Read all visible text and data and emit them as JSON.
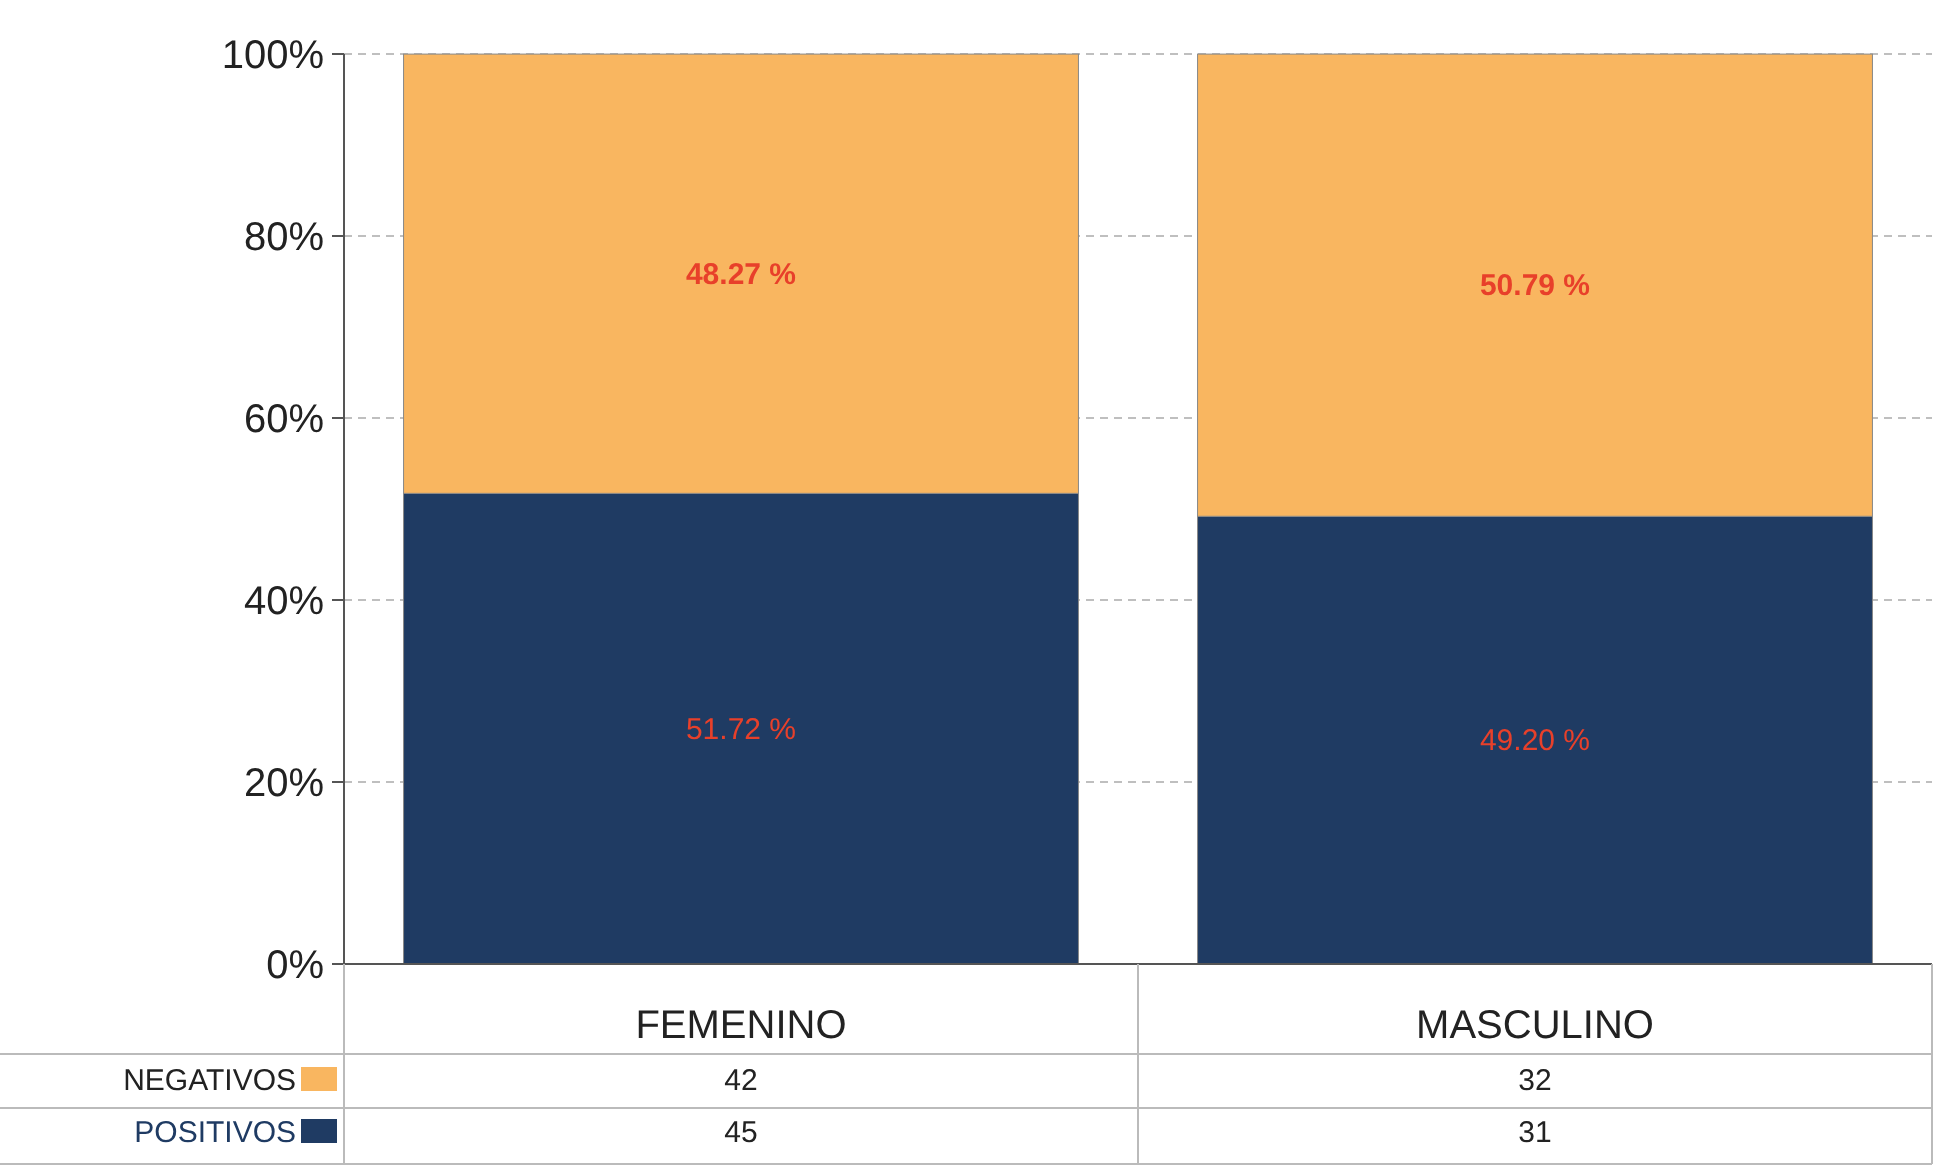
{
  "chart_data": {
    "type": "bar",
    "stacked": true,
    "categories": [
      "FEMENINO",
      "MASCULINO"
    ],
    "series": [
      {
        "name": "POSITIVOS",
        "color": "#1f3b63",
        "values": [
          51.72,
          49.2
        ],
        "value_labels": [
          "51.72 %",
          "49.20 %"
        ]
      },
      {
        "name": "NEGATIVOS",
        "color": "#f9b660",
        "values": [
          48.27,
          50.79
        ],
        "value_labels": [
          "48.27 %",
          "50.79 %"
        ]
      }
    ],
    "ylim": [
      0,
      100
    ],
    "yticks": [
      {
        "value": 0,
        "label": "0%"
      },
      {
        "value": 20,
        "label": "20%"
      },
      {
        "value": 40,
        "label": "40%"
      },
      {
        "value": 60,
        "label": "60%"
      },
      {
        "value": 80,
        "label": "80%"
      },
      {
        "value": 100,
        "label": "100%"
      }
    ],
    "grid": "y",
    "legend": "bottom",
    "annotations": [
      "42",
      "32",
      "45",
      "31"
    ]
  }
}
